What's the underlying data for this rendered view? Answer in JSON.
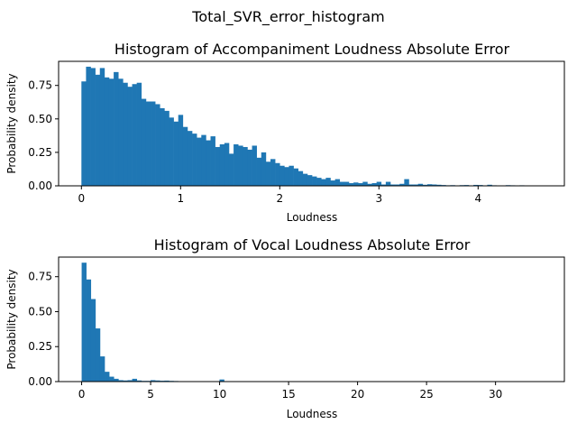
{
  "figure": {
    "suptitle": "Total_SVR_error_histogram"
  },
  "chart_data": [
    {
      "type": "bar",
      "title": "Histogram of Accompaniment Loudness Absolute Error",
      "xlabel": "Loudness",
      "ylabel": "Probability density",
      "xlim": [
        -0.23,
        4.87
      ],
      "ylim": [
        0,
        0.93
      ],
      "xticks": [
        0,
        1,
        2,
        3,
        4
      ],
      "yticks": [
        0.0,
        0.25,
        0.5,
        0.75
      ],
      "ytick_labels": [
        "0.00",
        "0.25",
        "0.50",
        "0.75"
      ],
      "grid": false,
      "color": "#1f77b4",
      "bin_start": 0.0,
      "bin_width": 0.0465,
      "values": [
        0.78,
        0.89,
        0.88,
        0.83,
        0.88,
        0.81,
        0.8,
        0.85,
        0.8,
        0.77,
        0.74,
        0.76,
        0.77,
        0.65,
        0.63,
        0.63,
        0.61,
        0.58,
        0.56,
        0.51,
        0.48,
        0.53,
        0.44,
        0.41,
        0.39,
        0.36,
        0.38,
        0.34,
        0.37,
        0.29,
        0.31,
        0.32,
        0.24,
        0.31,
        0.3,
        0.29,
        0.27,
        0.3,
        0.21,
        0.25,
        0.18,
        0.2,
        0.17,
        0.15,
        0.14,
        0.15,
        0.13,
        0.11,
        0.09,
        0.08,
        0.07,
        0.06,
        0.05,
        0.06,
        0.04,
        0.05,
        0.03,
        0.03,
        0.02,
        0.025,
        0.02,
        0.03,
        0.015,
        0.02,
        0.03,
        0.01,
        0.03,
        0.01,
        0.01,
        0.015,
        0.05,
        0.01,
        0.01,
        0.015,
        0.008,
        0.012,
        0.01,
        0.008,
        0.006,
        0.004,
        0.005,
        0.003,
        0.005,
        0.006,
        0.0,
        0.007,
        0.006,
        0.0,
        0.008,
        0.004,
        0.0,
        0.003,
        0.005,
        0.004,
        0.003,
        0.004,
        0.0,
        0.002,
        0.003,
        0.002
      ]
    },
    {
      "type": "bar",
      "title": "Histogram of Vocal Loudness Absolute Error",
      "xlabel": "Loudness",
      "ylabel": "Probability density",
      "xlim": [
        -1.67,
        34.99
      ],
      "ylim": [
        0,
        0.89
      ],
      "xticks": [
        0,
        5,
        10,
        15,
        20,
        25,
        30
      ],
      "yticks": [
        0.0,
        0.25,
        0.5,
        0.75
      ],
      "ytick_labels": [
        "0.00",
        "0.25",
        "0.50",
        "0.75"
      ],
      "grid": false,
      "color": "#1f77b4",
      "bin_start": 0.0,
      "bin_width": 0.333,
      "values": [
        0.85,
        0.73,
        0.59,
        0.38,
        0.18,
        0.07,
        0.035,
        0.02,
        0.01,
        0.008,
        0.01,
        0.02,
        0.008,
        0.005,
        0.005,
        0.01,
        0.008,
        0.006,
        0.007,
        0.005,
        0.004,
        0.003,
        0.002,
        0.002,
        0.001,
        0.001,
        0.001,
        0.001,
        0.0,
        0.0,
        0.015,
        0.001,
        0.0,
        0.0,
        0.0,
        0.0,
        0.0,
        0.0,
        0.0,
        0.0,
        0.0,
        0.0,
        0.0,
        0.0,
        0.0,
        0.0,
        0.0,
        0.0,
        0.0,
        0.0,
        0.0,
        0.0,
        0.0,
        0.0,
        0.0,
        0.0,
        0.0,
        0.0,
        0.0,
        0.0,
        0.0,
        0.0,
        0.0,
        0.0,
        0.0,
        0.0,
        0.0,
        0.0,
        0.0,
        0.0,
        0.0,
        0.0,
        0.0,
        0.0,
        0.0,
        0.0,
        0.0,
        0.0,
        0.0,
        0.0,
        0.0,
        0.0,
        0.0,
        0.0,
        0.0,
        0.0,
        0.0,
        0.0,
        0.0,
        0.0,
        0.0,
        0.0,
        0.0,
        0.0,
        0.0,
        0.0,
        0.0,
        0.0,
        0.0,
        0.0
      ]
    }
  ]
}
